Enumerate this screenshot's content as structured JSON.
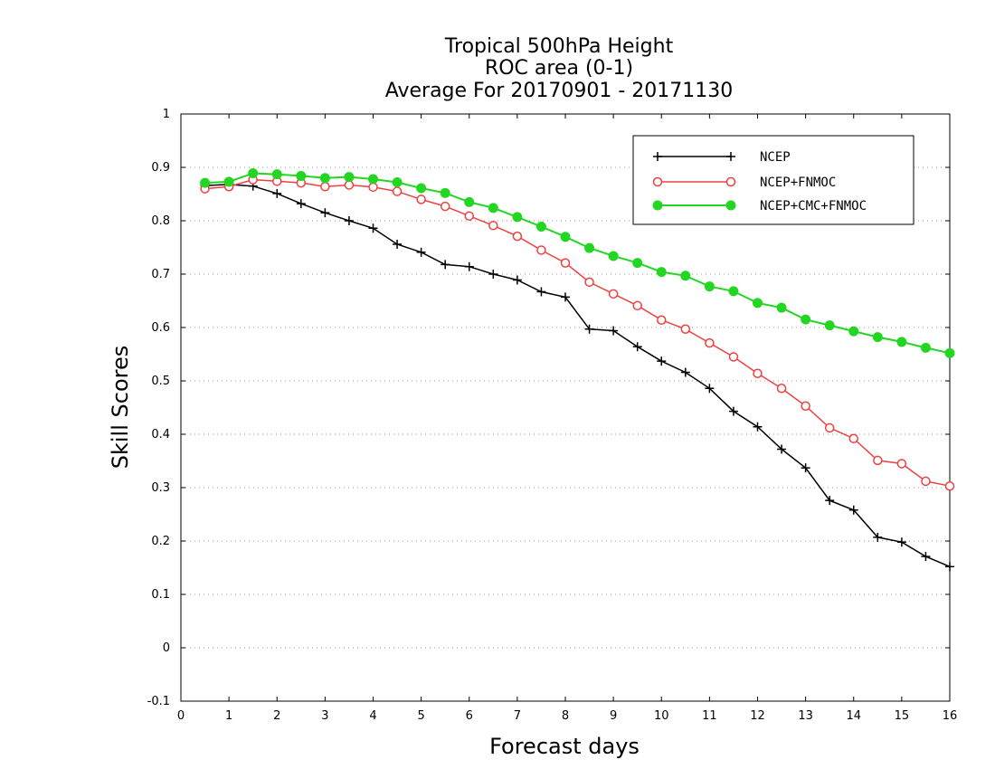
{
  "chart_data": {
    "type": "line",
    "title": [
      "Tropical 500hPa Height",
      "ROC area (0-1)",
      "Average For 20170901 - 20171130"
    ],
    "xlabel": "Forecast days",
    "ylabel": "Skill Scores",
    "xlim": [
      0,
      16
    ],
    "ylim": [
      -0.1,
      1
    ],
    "xticks": [
      "0",
      "1",
      "2",
      "3",
      "4",
      "5",
      "6",
      "7",
      "8",
      "9",
      "10",
      "11",
      "12",
      "13",
      "14",
      "15",
      "16"
    ],
    "yticks": [
      "-0.1",
      "0",
      "0.1",
      "0.2",
      "0.3",
      "0.4",
      "0.5",
      "0.6",
      "0.7",
      "0.8",
      "0.9",
      "1"
    ],
    "grid": "horizontal dotted",
    "legend_position": "top-right",
    "x": [
      0.5,
      1,
      1.5,
      2,
      2.5,
      3,
      3.5,
      4,
      4.5,
      5,
      5.5,
      6,
      6.5,
      7,
      7.5,
      8,
      8.5,
      9,
      9.5,
      10,
      10.5,
      11,
      11.5,
      12,
      12.5,
      13,
      13.5,
      14,
      14.5,
      15,
      15.5,
      16
    ],
    "series": [
      {
        "name": "NCEP",
        "color": "#000000",
        "marker": "plus",
        "values": [
          0.866,
          0.868,
          0.865,
          0.851,
          0.832,
          0.815,
          0.8,
          0.786,
          0.756,
          0.741,
          0.718,
          0.714,
          0.7,
          0.689,
          0.667,
          0.657,
          0.597,
          0.594,
          0.564,
          0.537,
          0.516,
          0.486,
          0.443,
          0.414,
          0.372,
          0.337,
          0.276,
          0.258,
          0.207,
          0.198,
          0.171,
          0.152
        ]
      },
      {
        "name": "NCEP+FNMOC",
        "color": "#ef4040",
        "marker": "open-circle",
        "values": [
          0.86,
          0.864,
          0.877,
          0.874,
          0.871,
          0.864,
          0.867,
          0.863,
          0.855,
          0.84,
          0.827,
          0.809,
          0.791,
          0.771,
          0.745,
          0.721,
          0.685,
          0.663,
          0.641,
          0.614,
          0.597,
          0.571,
          0.545,
          0.514,
          0.486,
          0.453,
          0.412,
          0.392,
          0.351,
          0.345,
          0.312,
          0.303
        ]
      },
      {
        "name": "NCEP+CMC+FNMOC",
        "color": "#22d622",
        "marker": "filled-circle",
        "values": [
          0.871,
          0.873,
          0.889,
          0.887,
          0.884,
          0.88,
          0.882,
          0.878,
          0.872,
          0.861,
          0.852,
          0.835,
          0.824,
          0.807,
          0.789,
          0.77,
          0.749,
          0.734,
          0.721,
          0.704,
          0.697,
          0.677,
          0.668,
          0.646,
          0.637,
          0.615,
          0.604,
          0.593,
          0.582,
          0.573,
          0.562,
          0.552
        ]
      }
    ]
  }
}
